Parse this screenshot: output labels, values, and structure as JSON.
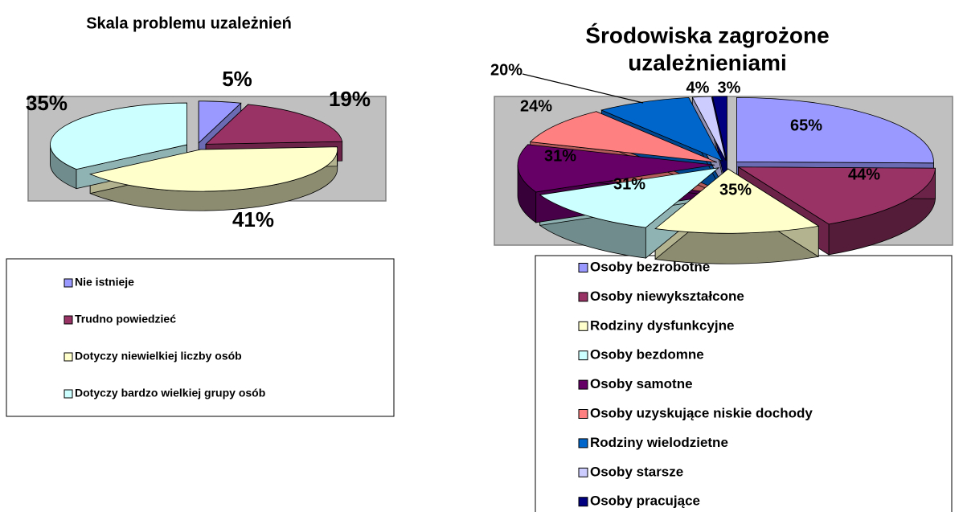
{
  "chart_data": [
    {
      "type": "pie3d",
      "title": "Skala problemu uzależnień",
      "categories": [
        "Nie istnieje",
        "Trudno powiedzieć",
        "Dotyczy niewielkiej liczby osób",
        "Dotyczy bardzo wielkiej grupy osób"
      ],
      "values": [
        5,
        19,
        41,
        35
      ],
      "value_labels": [
        "5%",
        "19%",
        "41%",
        "35%"
      ],
      "colors": [
        "#9999ff",
        "#993366",
        "#ffffcc",
        "#ccffff"
      ],
      "legend": "bottom"
    },
    {
      "type": "pie3d",
      "title": [
        "Środowiska zagrożone",
        "uzależnieniami"
      ],
      "categories": [
        "Osoby bezrobotne",
        "Osoby niewykształcone",
        "Rodziny dysfunkcyjne",
        "Osoby bezdomne",
        "Osoby samotne",
        "Osoby uzyskujące niskie dochody",
        "Rodziny wielodzietne",
        "Osoby starsze",
        "Osoby pracujące"
      ],
      "values": [
        65,
        44,
        35,
        31,
        31,
        24,
        20,
        4,
        3
      ],
      "value_labels": [
        "65%",
        "44%",
        "35%",
        "31%",
        "31%",
        "24%",
        "20%",
        "4%",
        "3%"
      ],
      "colors": [
        "#9999ff",
        "#993366",
        "#ffffcc",
        "#ccffff",
        "#660066",
        "#ff8080",
        "#0066cc",
        "#ccccff",
        "#000080"
      ],
      "legend": "bottom"
    }
  ]
}
